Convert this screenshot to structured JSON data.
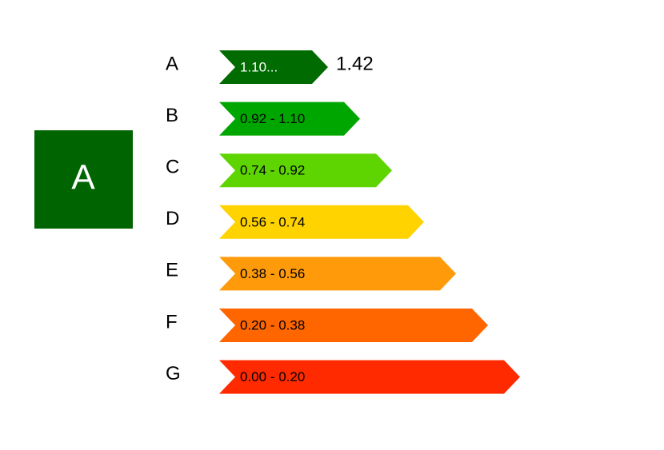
{
  "rating": {
    "label": "A",
    "color": "#006400",
    "value": "1.42"
  },
  "classes": [
    {
      "letter": "A",
      "range": "1.10...",
      "color": "#006b00",
      "text_color": "#ffffff"
    },
    {
      "letter": "B",
      "range": "0.92 - 1.10",
      "color": "#00a600",
      "text_color": "#000000"
    },
    {
      "letter": "C",
      "range": "0.74 - 0.92",
      "color": "#5ed400",
      "text_color": "#000000"
    },
    {
      "letter": "D",
      "range": "0.56 - 0.74",
      "color": "#ffd300",
      "text_color": "#000000"
    },
    {
      "letter": "E",
      "range": "0.38 - 0.56",
      "color": "#ff9a0a",
      "text_color": "#000000"
    },
    {
      "letter": "F",
      "range": "0.20 - 0.38",
      "color": "#ff6600",
      "text_color": "#000000"
    },
    {
      "letter": "G",
      "range": "0.00 - 0.20",
      "color": "#ff2a00",
      "text_color": "#000000"
    }
  ]
}
